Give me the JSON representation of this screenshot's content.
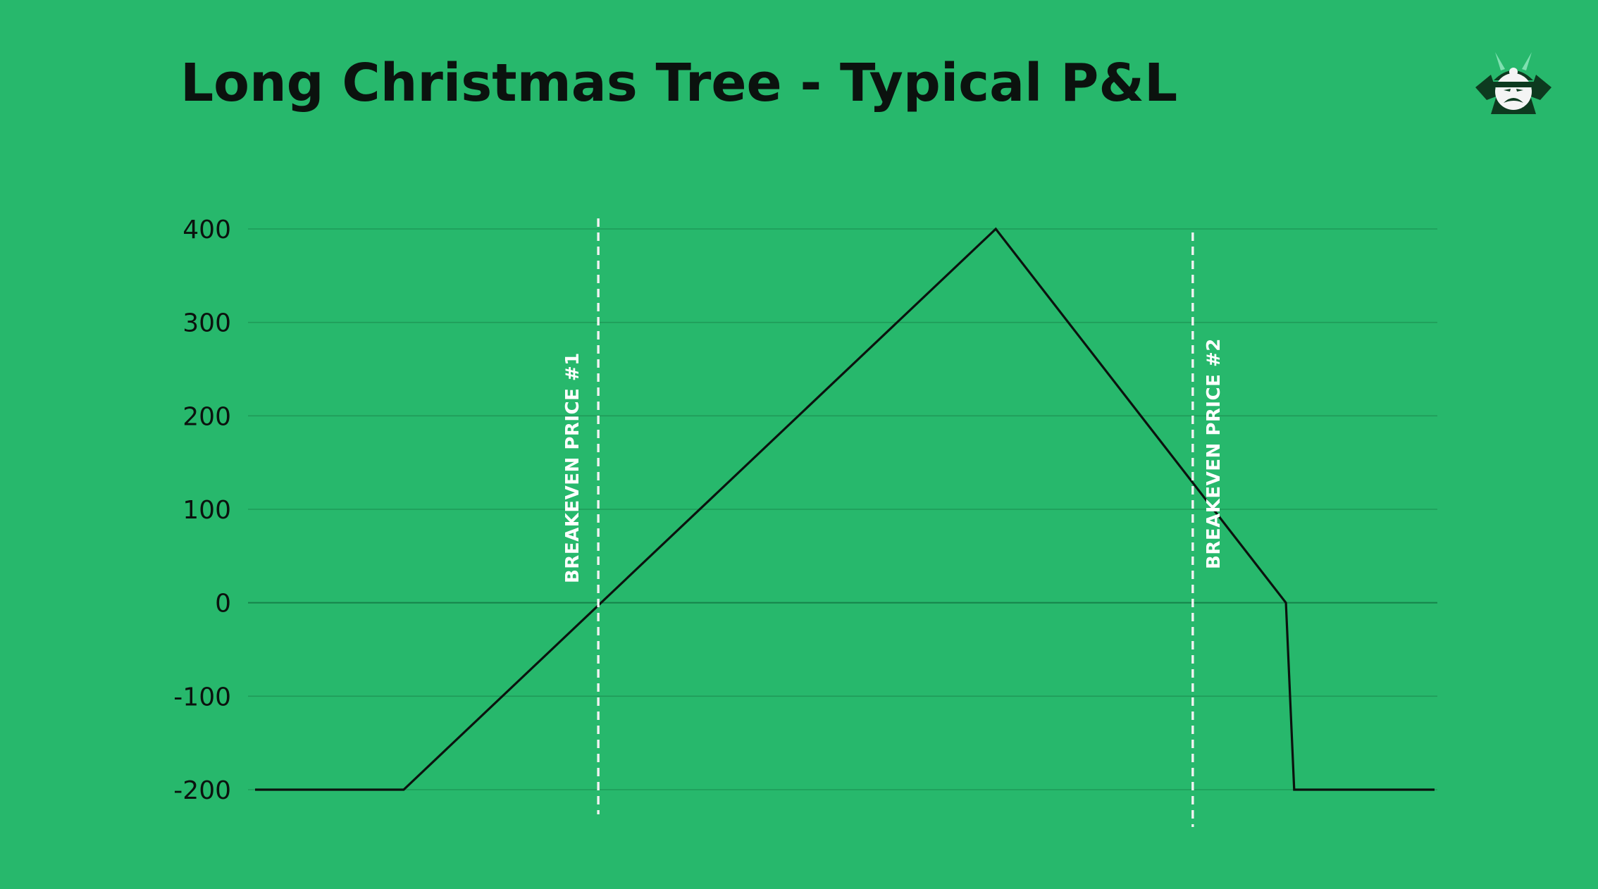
{
  "title": "Long Christmas Tree - Typical P&L",
  "logo": {
    "icon": "samurai-mascot-icon"
  },
  "colors": {
    "background": "#27b86c",
    "line": "#0b120e",
    "grid": "#1f9a58",
    "zero_line": "#15824a",
    "breakeven": "#f2f2f2"
  },
  "chart_data": {
    "type": "line",
    "title": "Long Christmas Tree - Typical P&L",
    "xlabel": "",
    "ylabel": "",
    "ylim": [
      -200,
      400
    ],
    "xlim": [
      0,
      100
    ],
    "yticks": [
      400,
      300,
      200,
      100,
      0,
      -100,
      -200
    ],
    "ytick_labels": [
      "400",
      "300",
      "200",
      "100",
      "0",
      "-100",
      "-200"
    ],
    "grid": true,
    "legend": "none",
    "series": [
      {
        "points": [
          {
            "x": 0,
            "y": -200
          },
          {
            "x": 12.6,
            "y": -200
          },
          {
            "x": 62.8,
            "y": 400
          },
          {
            "x": 87.4,
            "y": 0
          },
          {
            "x": 88.1,
            "y": -200
          },
          {
            "x": 100,
            "y": -200
          }
        ]
      }
    ],
    "annotations": [
      {
        "type": "vertical-line",
        "x": 29.1,
        "label": "BREAKEVEN PRICE #1"
      },
      {
        "type": "vertical-line",
        "x": 79.5,
        "label": "BREAKEVEN PRICE #2"
      }
    ]
  }
}
